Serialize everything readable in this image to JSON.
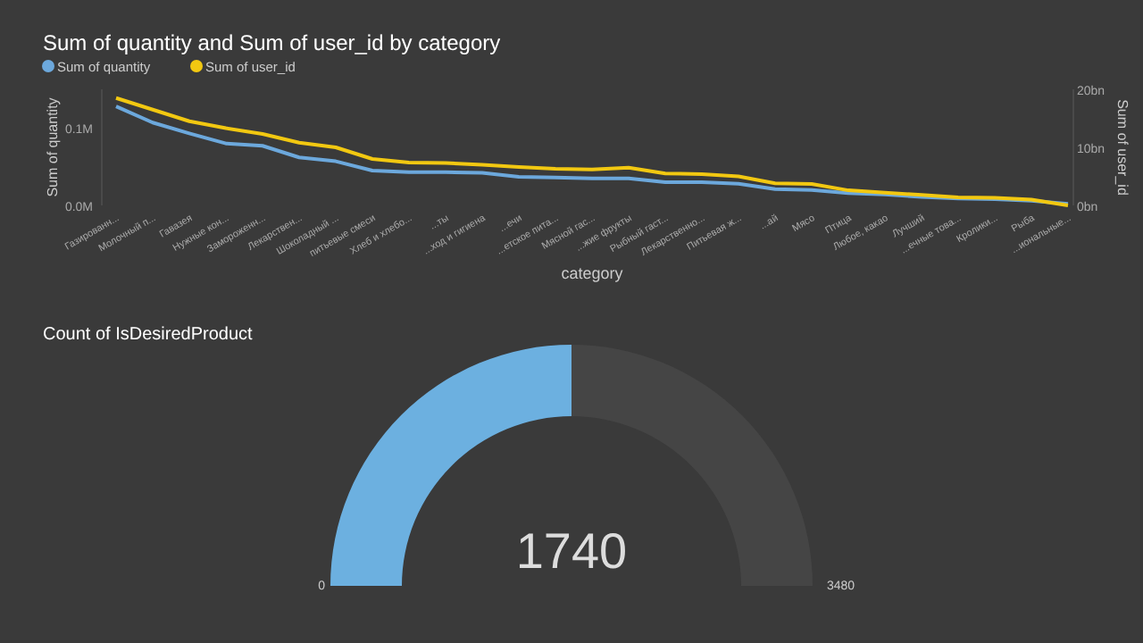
{
  "chart_data": [
    {
      "type": "line",
      "title": "Sum of quantity and Sum of user_id by category",
      "xlabel": "category",
      "ylabel": "Sum of quantity",
      "y2label": "Sum of user_id",
      "categories": [
        "Газированн...",
        "Молочный п...",
        "Гавазея",
        "Нужные кон...",
        "Замороженн...",
        "Лекарствен...",
        "Шоколадный ...",
        "питьевые смеси",
        "Хлеб и хлебо...",
        "...ты",
        "...ход и гигиена",
        "...ечи",
        "...етское пита...",
        "Мясной гас...",
        "...жие фрукты",
        "Рыбный гаст...",
        "Лекарственно...",
        "Питьевая ж...",
        "...ай",
        "Мясо",
        "Птица",
        "Любое, какао",
        "Лучший",
        "...ечные това...",
        "Кролики...",
        "Рыба",
        "...иональные..."
      ],
      "series": [
        {
          "name": "Sum of quantity",
          "color": "#6ca8dc",
          "values": [
            0.128,
            0.107,
            0.093,
            0.08,
            0.077,
            0.062,
            0.057,
            0.045,
            0.043,
            0.043,
            0.042,
            0.037,
            0.036,
            0.035,
            0.035,
            0.03,
            0.03,
            0.028,
            0.021,
            0.02,
            0.016,
            0.014,
            0.011,
            0.009,
            0.008,
            0.006,
            0.002
          ]
        },
        {
          "name": "Sum of user_id",
          "color": "#f2c811",
          "axis": "y2",
          "values": [
            18.5,
            16.5,
            14.5,
            13.3,
            12.3,
            10.8,
            10.0,
            8.0,
            7.4,
            7.3,
            7.0,
            6.6,
            6.3,
            6.2,
            6.5,
            5.5,
            5.4,
            5.0,
            3.8,
            3.7,
            2.6,
            2.2,
            1.8,
            1.4,
            1.3,
            1.0,
            0.0
          ]
        }
      ],
      "ylim": [
        0,
        0.15
      ],
      "yticks": [
        {
          "value": 0,
          "label": "0.0M"
        },
        {
          "value": 0.1,
          "label": "0.1M"
        }
      ],
      "y2lim": [
        0,
        20
      ],
      "y2ticks": [
        {
          "value": 0,
          "label": "0bn"
        },
        {
          "value": 10,
          "label": "10bn"
        },
        {
          "value": 20,
          "label": "20bn"
        }
      ],
      "legend": "top left",
      "grid": false,
      "marker": "none"
    },
    {
      "type": "donut",
      "title": "Count of IsDesiredProduct",
      "categories": [
        null,
        null
      ],
      "values": [
        1740,
        1740
      ],
      "colors": [
        "#6cb0e0",
        "#454545"
      ],
      "value_labels": [
        "1740",
        null
      ],
      "annotations": [
        "0",
        "3480"
      ]
    }
  ]
}
